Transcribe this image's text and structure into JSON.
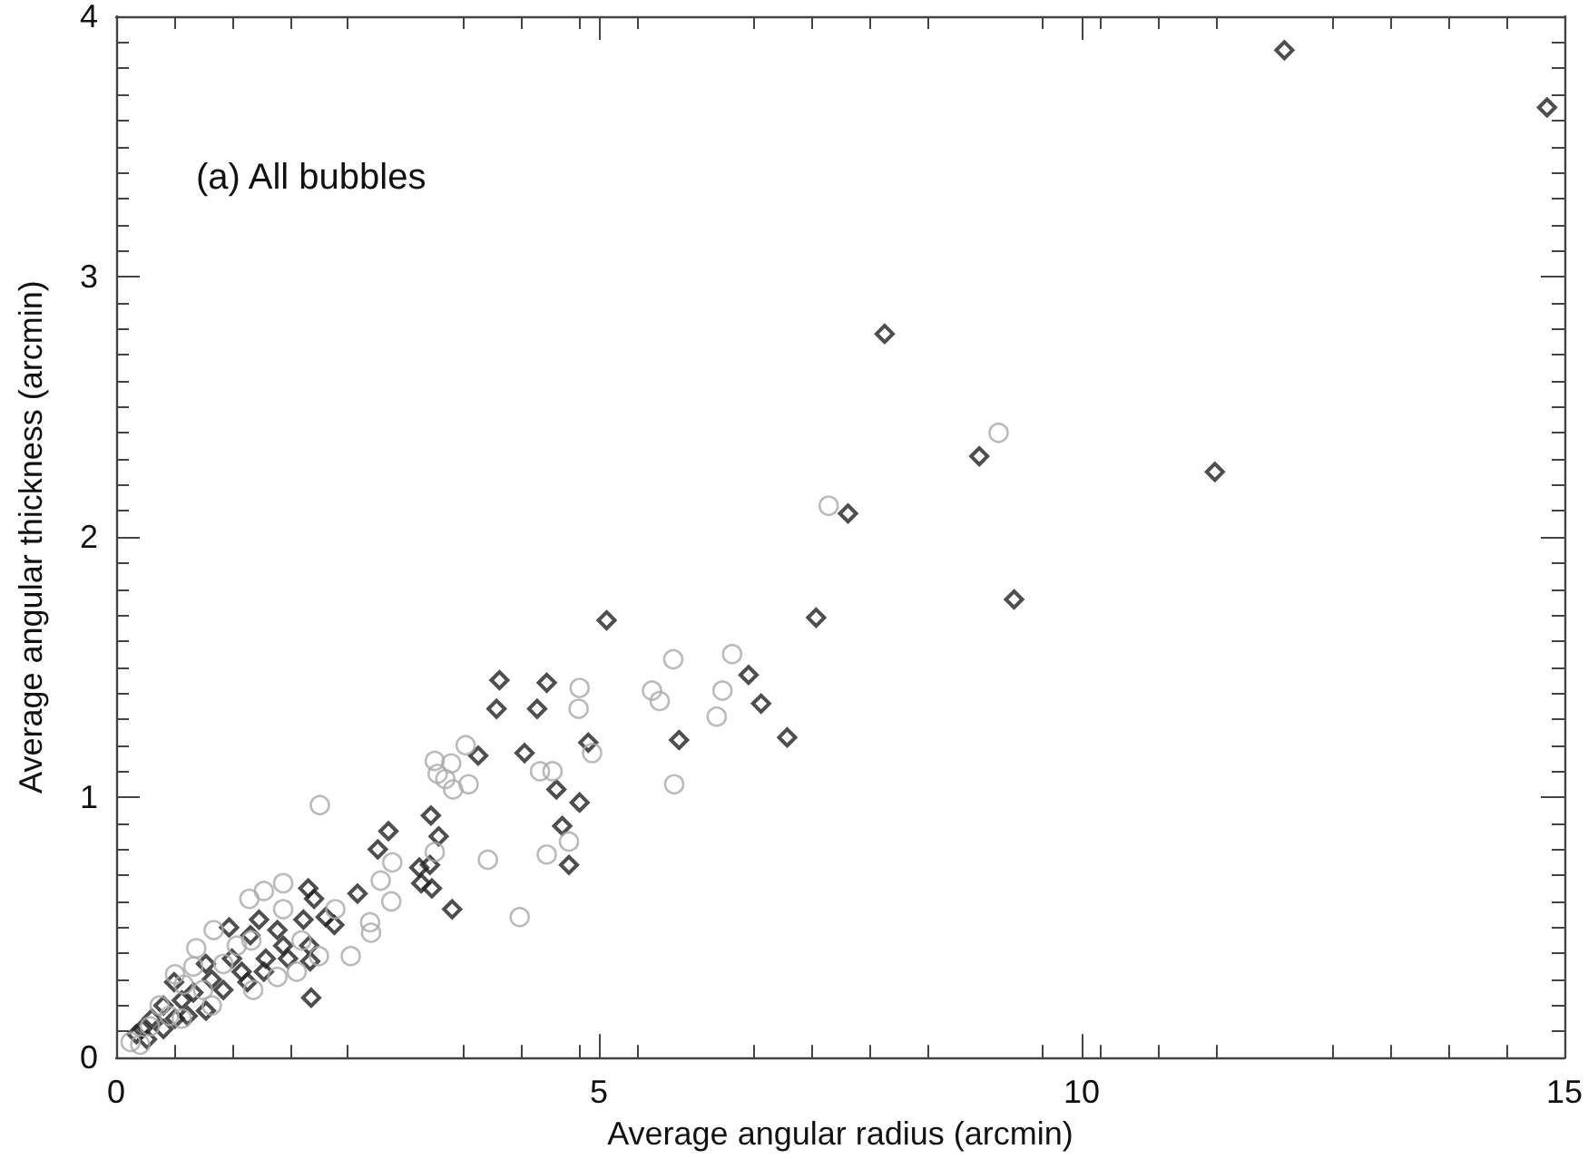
{
  "chart_data": {
    "type": "scatter",
    "xlabel": "Average angular radius (arcmin)",
    "ylabel": "Average angular thickness (arcmin)",
    "annotations": [
      "(a) All bubbles"
    ],
    "xlim": [
      0,
      15
    ],
    "xticks": [
      0,
      5,
      10,
      15
    ],
    "ylim": [
      0,
      4
    ],
    "yticks": [
      0,
      1,
      2,
      3,
      4
    ],
    "grid": false,
    "series": [
      {
        "color": "#222222",
        "marker": "diamond",
        "x": [
          14.82,
          12.1,
          7.96,
          8.94,
          7.58,
          11.38,
          9.3,
          7.25,
          6.55,
          5.08,
          3.97,
          4.46,
          3.94,
          4.36,
          6.68,
          6.95,
          5.83,
          4.89,
          3.75,
          4.23,
          4.56,
          4.8,
          4.62,
          4.69,
          3.26,
          3.34,
          3.25,
          3.27,
          3.48,
          2.71,
          2.82,
          3.14,
          3.16,
          2.5,
          1.99,
          2.05,
          2.02,
          1.17,
          1.48,
          1.39,
          1.67,
          1.94,
          2.17,
          2.26,
          1.73,
          2.0,
          2.01,
          1.78,
          1.55,
          1.53,
          1.2,
          1.3,
          0.93,
          0.6,
          0.99,
          0.8,
          1.11,
          1.36,
          0.68,
          0.49,
          0.93,
          0.37,
          0.61,
          0.27,
          0.49,
          0.21,
          0.32,
          0.74
        ],
        "values": [
          3.65,
          3.87,
          2.78,
          2.31,
          2.09,
          2.25,
          1.76,
          1.69,
          1.47,
          1.68,
          1.45,
          1.44,
          1.34,
          1.34,
          1.36,
          1.23,
          1.22,
          1.21,
          1.16,
          1.17,
          1.03,
          0.98,
          0.89,
          0.74,
          0.93,
          0.85,
          0.74,
          0.65,
          0.57,
          0.8,
          0.87,
          0.73,
          0.67,
          0.63,
          0.65,
          0.61,
          0.23,
          0.5,
          0.53,
          0.47,
          0.49,
          0.53,
          0.54,
          0.51,
          0.43,
          0.43,
          0.37,
          0.38,
          0.38,
          0.33,
          0.38,
          0.33,
          0.36,
          0.29,
          0.3,
          0.25,
          0.26,
          0.29,
          0.22,
          0.2,
          0.18,
          0.15,
          0.15,
          0.11,
          0.11,
          0.09,
          0.07,
          0.16
        ]
      },
      {
        "color": "#aaaaaa",
        "marker": "circle",
        "x": [
          9.14,
          7.38,
          6.38,
          5.77,
          5.55,
          5.63,
          6.28,
          6.22,
          4.8,
          4.79,
          4.93,
          3.62,
          3.3,
          3.47,
          3.33,
          3.41,
          3.49,
          3.65,
          4.39,
          4.52,
          5.78,
          4.69,
          4.46,
          3.85,
          4.18,
          3.3,
          2.11,
          1.73,
          1.53,
          1.38,
          2.86,
          2.74,
          2.85,
          2.63,
          2.64,
          2.43,
          2.27,
          1.73,
          1.01,
          0.83,
          0.61,
          1.92,
          2.1,
          1.67,
          1.42,
          0.99,
          0.68,
          0.15,
          1.87,
          1.11,
          0.35,
          0.45,
          0.9,
          1.25,
          0.7,
          0.25,
          1.4,
          0.55,
          0.8
        ],
        "values": [
          2.4,
          2.12,
          1.55,
          1.53,
          1.41,
          1.37,
          1.41,
          1.31,
          1.42,
          1.34,
          1.17,
          1.2,
          1.14,
          1.13,
          1.09,
          1.07,
          1.03,
          1.05,
          1.1,
          1.1,
          1.05,
          0.83,
          0.78,
          0.76,
          0.54,
          0.79,
          0.97,
          0.67,
          0.64,
          0.61,
          0.75,
          0.68,
          0.6,
          0.52,
          0.48,
          0.39,
          0.57,
          0.57,
          0.49,
          0.42,
          0.32,
          0.45,
          0.39,
          0.31,
          0.26,
          0.2,
          0.15,
          0.06,
          0.33,
          0.36,
          0.12,
          0.2,
          0.26,
          0.43,
          0.28,
          0.05,
          0.45,
          0.16,
          0.35
        ]
      }
    ]
  }
}
